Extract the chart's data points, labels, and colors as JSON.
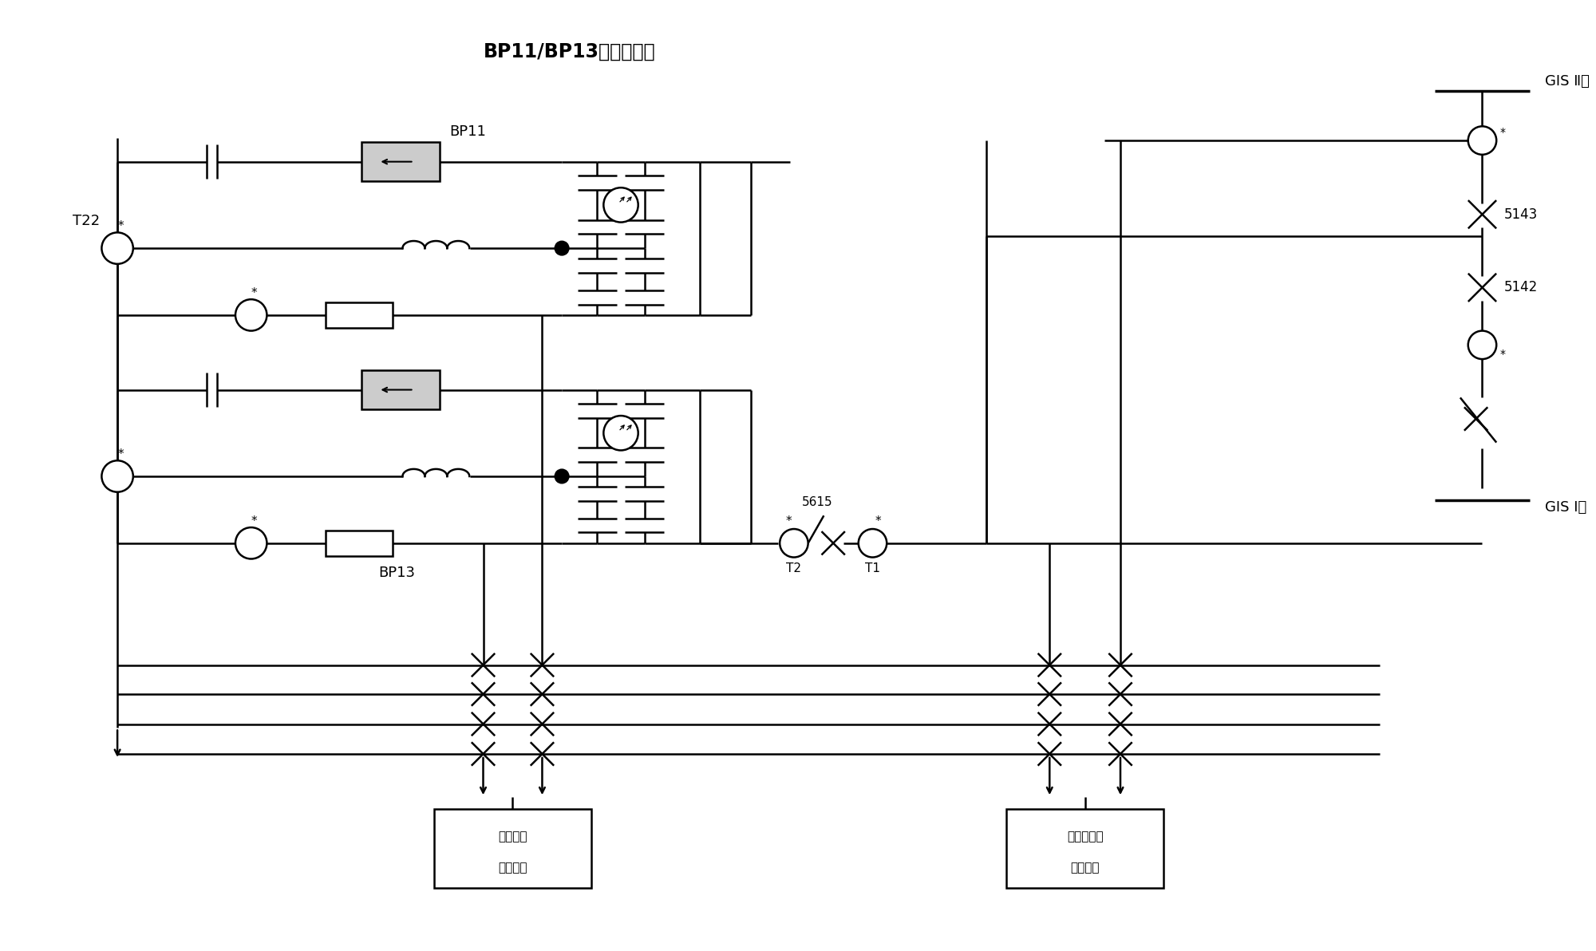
{
  "title": "BP11/BP13交流滤波器",
  "gis2": "GIS Ⅱ母",
  "gis1": "GIS Ⅰ母",
  "bp11_label": "BP11",
  "bp13_label": "BP13",
  "t22_label": "T22",
  "t2_label": "T2",
  "t1_label": "T1",
  "sw5615": "5615",
  "sw5143": "5143",
  "sw5142": "5142",
  "box1_line1": "大组母线",
  "box1_line2": "差动保护",
  "box2_line1": "小组滤波器",
  "box2_line2": "差动保护",
  "fig_width": 20.0,
  "fig_height": 11.92
}
